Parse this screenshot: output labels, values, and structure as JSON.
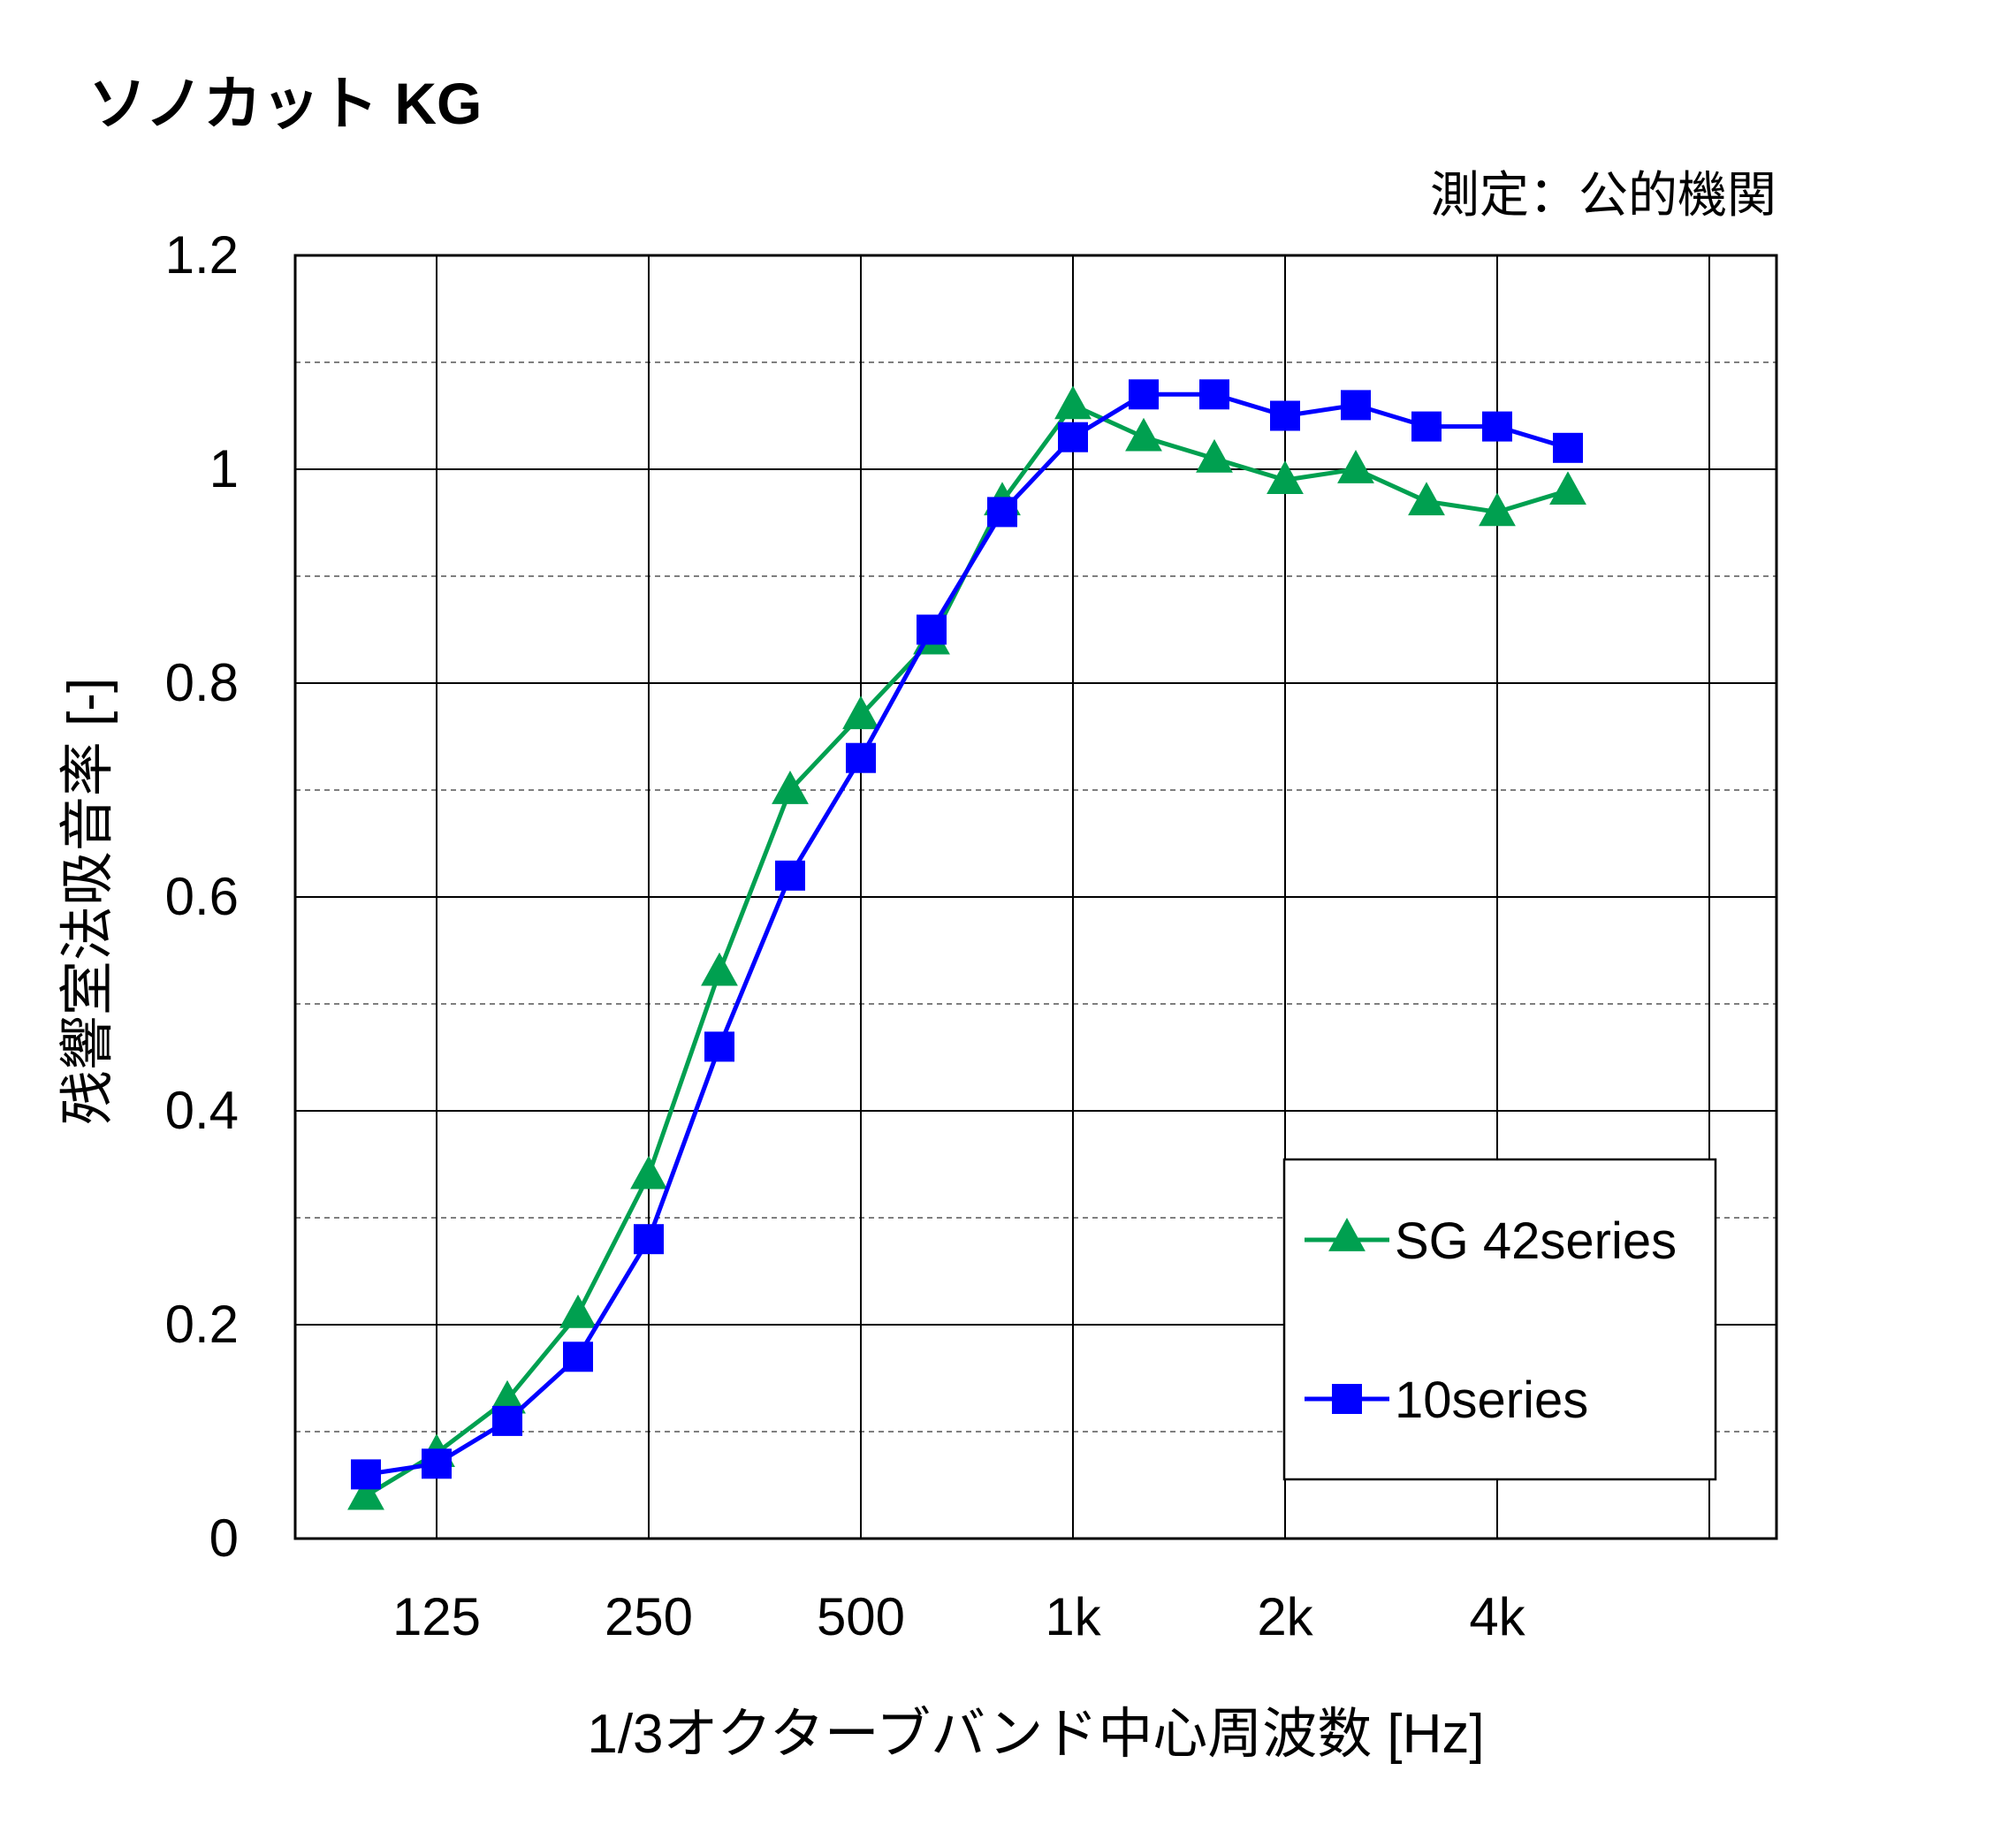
{
  "chart_data": {
    "type": "line",
    "title": "ソノカット KG",
    "subtitle": "測定：公的機関",
    "xlabel": "1/3オクターブバンド中心周波数 [Hz]",
    "ylabel": "残響室法吸音率 [-]",
    "ylim": [
      0,
      1.2
    ],
    "y_ticks": [
      "0",
      "0.2",
      "0.4",
      "0.6",
      "0.8",
      "1",
      "1.2"
    ],
    "x": [
      "100",
      "125",
      "160",
      "200",
      "250",
      "315",
      "400",
      "500",
      "630",
      "800",
      "1k",
      "1.25k",
      "1.6k",
      "2k",
      "2.5k",
      "3.15k",
      "4k",
      "5k"
    ],
    "x_tick_labels": [
      "125",
      "250",
      "500",
      "1k",
      "2k",
      "4k"
    ],
    "grid": true,
    "legend_position": "bottom-right",
    "series": [
      {
        "name": "SG 42series",
        "color": "#00A050",
        "marker": "triangle",
        "values": [
          0.04,
          0.08,
          0.13,
          0.21,
          0.34,
          0.53,
          0.7,
          0.77,
          0.84,
          0.97,
          1.06,
          1.03,
          1.01,
          0.99,
          1.0,
          0.97,
          0.96,
          0.98
        ]
      },
      {
        "name": "10series",
        "color": "#0000FF",
        "marker": "square",
        "values": [
          0.06,
          0.07,
          0.11,
          0.17,
          0.28,
          0.46,
          0.62,
          0.73,
          0.85,
          0.96,
          1.03,
          1.07,
          1.07,
          1.05,
          1.06,
          1.04,
          1.04,
          1.02
        ]
      }
    ]
  }
}
